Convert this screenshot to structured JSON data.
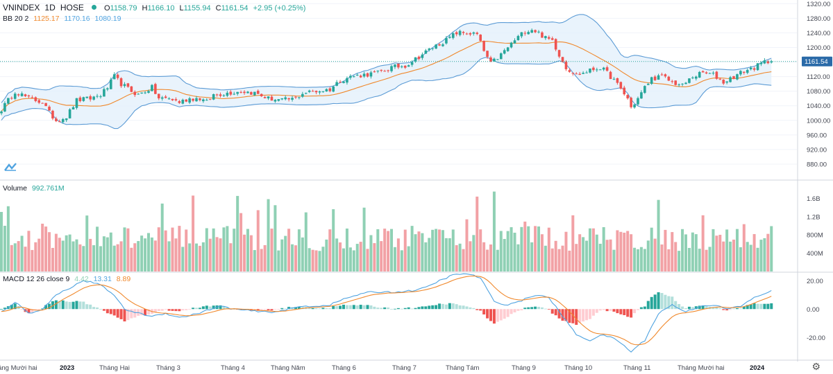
{
  "header": {
    "symbol": "VNINDEX",
    "interval": "1D",
    "exchange": "HOSE",
    "status_color": "#26a69a",
    "ohlc": {
      "o_label": "O",
      "o": "1158.79",
      "h_label": "H",
      "h": "1166.10",
      "l_label": "L",
      "l": "1155.94",
      "c_label": "C",
      "c": "1161.54",
      "change": "+2.95 (+0.25%)"
    },
    "bb": {
      "label": "BB 20 2",
      "basis": "1125.17",
      "upper": "1170.16",
      "lower": "1080.19"
    }
  },
  "volume_header": {
    "label": "Volume",
    "value": "992.761M"
  },
  "macd_header": {
    "label": "MACD 12 26 close 9",
    "hist": "4.42",
    "macd": "13.31",
    "signal": "8.89"
  },
  "colors": {
    "up": "#26a69a",
    "down": "#ef5350",
    "vol_up": "#8fd0b4",
    "vol_down": "#f2a1a5",
    "bb_line": "#5b9bd5",
    "bb_fill": "#e3f0fb",
    "basis": "#f0882b",
    "macd_line": "#4fa3e0",
    "signal_line": "#f0882b",
    "price_tag": "#2a6aa8"
  },
  "last_price_label": "1161.54",
  "chart_data": {
    "type": "candlestick",
    "title": "VNINDEX 1D HOSE",
    "price_axis": {
      "range": [
        840,
        1330
      ],
      "ticks": [
        "1320.00",
        "1280.00",
        "1240.00",
        "1200.00",
        "1160.00",
        "1120.00",
        "1080.00",
        "1040.00",
        "1000.00",
        "960.00",
        "920.00",
        "880.00"
      ]
    },
    "volume_axis": {
      "range": [
        0,
        1.85
      ],
      "unit": "B",
      "ticks": [
        "1.6B",
        "1.2B",
        "800M",
        "400M"
      ]
    },
    "macd_axis": {
      "range": [
        -35,
        25
      ],
      "ticks": [
        "20.00",
        "0.00",
        "-20.00"
      ]
    },
    "x_axis_labels": [
      "Tháng Mười hai",
      "2023",
      "Tháng Hai",
      "Tháng 3",
      "Tháng 4",
      "Tháng Năm",
      "Tháng 6",
      "Tháng 7",
      "Tháng Tám",
      "Tháng 9",
      "Tháng 10",
      "Tháng 11",
      "Tháng Mười hai",
      "2024"
    ],
    "bold_labels": [
      "2023",
      "2024"
    ],
    "close_anchors": [
      [
        0,
        1030
      ],
      [
        4,
        1080
      ],
      [
        8,
        1060
      ],
      [
        12,
        1050
      ],
      [
        14,
        1020
      ],
      [
        16,
        1000
      ],
      [
        19,
        1010
      ],
      [
        22,
        1055
      ],
      [
        26,
        1060
      ],
      [
        29,
        1070
      ],
      [
        31,
        1090
      ],
      [
        33,
        1120
      ],
      [
        35,
        1100
      ],
      [
        38,
        1080
      ],
      [
        40,
        1070
      ],
      [
        42,
        1080
      ],
      [
        44,
        1090
      ],
      [
        46,
        1060
      ],
      [
        49,
        1060
      ],
      [
        52,
        1050
      ],
      [
        55,
        1060
      ],
      [
        58,
        1060
      ],
      [
        60,
        1050
      ],
      [
        62,
        1070
      ],
      [
        66,
        1075
      ],
      [
        70,
        1080
      ],
      [
        74,
        1075
      ],
      [
        78,
        1060
      ],
      [
        82,
        1055
      ],
      [
        86,
        1060
      ],
      [
        88,
        1075
      ],
      [
        92,
        1080
      ],
      [
        96,
        1085
      ],
      [
        99,
        1110
      ],
      [
        102,
        1120
      ],
      [
        106,
        1125
      ],
      [
        110,
        1130
      ],
      [
        114,
        1145
      ],
      [
        118,
        1150
      ],
      [
        122,
        1175
      ],
      [
        126,
        1200
      ],
      [
        130,
        1220
      ],
      [
        133,
        1240
      ],
      [
        136,
        1240
      ],
      [
        139,
        1235
      ],
      [
        141,
        1190
      ],
      [
        143,
        1155
      ],
      [
        146,
        1180
      ],
      [
        150,
        1220
      ],
      [
        153,
        1245
      ],
      [
        155,
        1250
      ],
      [
        157,
        1240
      ],
      [
        159,
        1225
      ],
      [
        161,
        1220
      ],
      [
        163,
        1180
      ],
      [
        165,
        1145
      ],
      [
        168,
        1125
      ],
      [
        170,
        1130
      ],
      [
        173,
        1140
      ],
      [
        175,
        1145
      ],
      [
        177,
        1130
      ],
      [
        179,
        1110
      ],
      [
        181,
        1085
      ],
      [
        183,
        1060
      ],
      [
        184,
        1035
      ],
      [
        186,
        1060
      ],
      [
        188,
        1090
      ],
      [
        190,
        1115
      ],
      [
        193,
        1120
      ],
      [
        196,
        1105
      ],
      [
        199,
        1095
      ],
      [
        202,
        1120
      ],
      [
        205,
        1130
      ],
      [
        208,
        1125
      ],
      [
        211,
        1105
      ],
      [
        214,
        1120
      ],
      [
        217,
        1135
      ],
      [
        220,
        1145
      ],
      [
        223,
        1160
      ],
      [
        225,
        1162
      ]
    ],
    "macd_anchors": [
      [
        0,
        -2
      ],
      [
        4,
        5
      ],
      [
        8,
        -3
      ],
      [
        12,
        0
      ],
      [
        16,
        10
      ],
      [
        20,
        15
      ],
      [
        24,
        20
      ],
      [
        28,
        18
      ],
      [
        32,
        12
      ],
      [
        36,
        0
      ],
      [
        40,
        -3
      ],
      [
        44,
        -5
      ],
      [
        48,
        -3
      ],
      [
        52,
        -6
      ],
      [
        56,
        -4
      ],
      [
        60,
        -1
      ],
      [
        64,
        2
      ],
      [
        68,
        0
      ],
      [
        72,
        -1
      ],
      [
        76,
        -2
      ],
      [
        80,
        -2
      ],
      [
        84,
        0
      ],
      [
        88,
        2
      ],
      [
        92,
        2
      ],
      [
        96,
        3
      ],
      [
        100,
        7
      ],
      [
        104,
        10
      ],
      [
        108,
        12
      ],
      [
        112,
        12
      ],
      [
        116,
        12
      ],
      [
        120,
        13
      ],
      [
        124,
        15
      ],
      [
        128,
        20
      ],
      [
        132,
        24
      ],
      [
        136,
        25
      ],
      [
        140,
        22
      ],
      [
        144,
        5
      ],
      [
        148,
        3
      ],
      [
        152,
        6
      ],
      [
        156,
        10
      ],
      [
        160,
        8
      ],
      [
        164,
        -5
      ],
      [
        168,
        -18
      ],
      [
        172,
        -22
      ],
      [
        176,
        -18
      ],
      [
        180,
        -22
      ],
      [
        184,
        -30
      ],
      [
        188,
        -22
      ],
      [
        192,
        -3
      ],
      [
        196,
        3
      ],
      [
        200,
        -2
      ],
      [
        204,
        2
      ],
      [
        208,
        3
      ],
      [
        212,
        0
      ],
      [
        216,
        2
      ],
      [
        220,
        8
      ],
      [
        225,
        13
      ]
    ]
  },
  "settings_icon": "gear-icon",
  "logo_icon": "tradingview-logo-icon"
}
